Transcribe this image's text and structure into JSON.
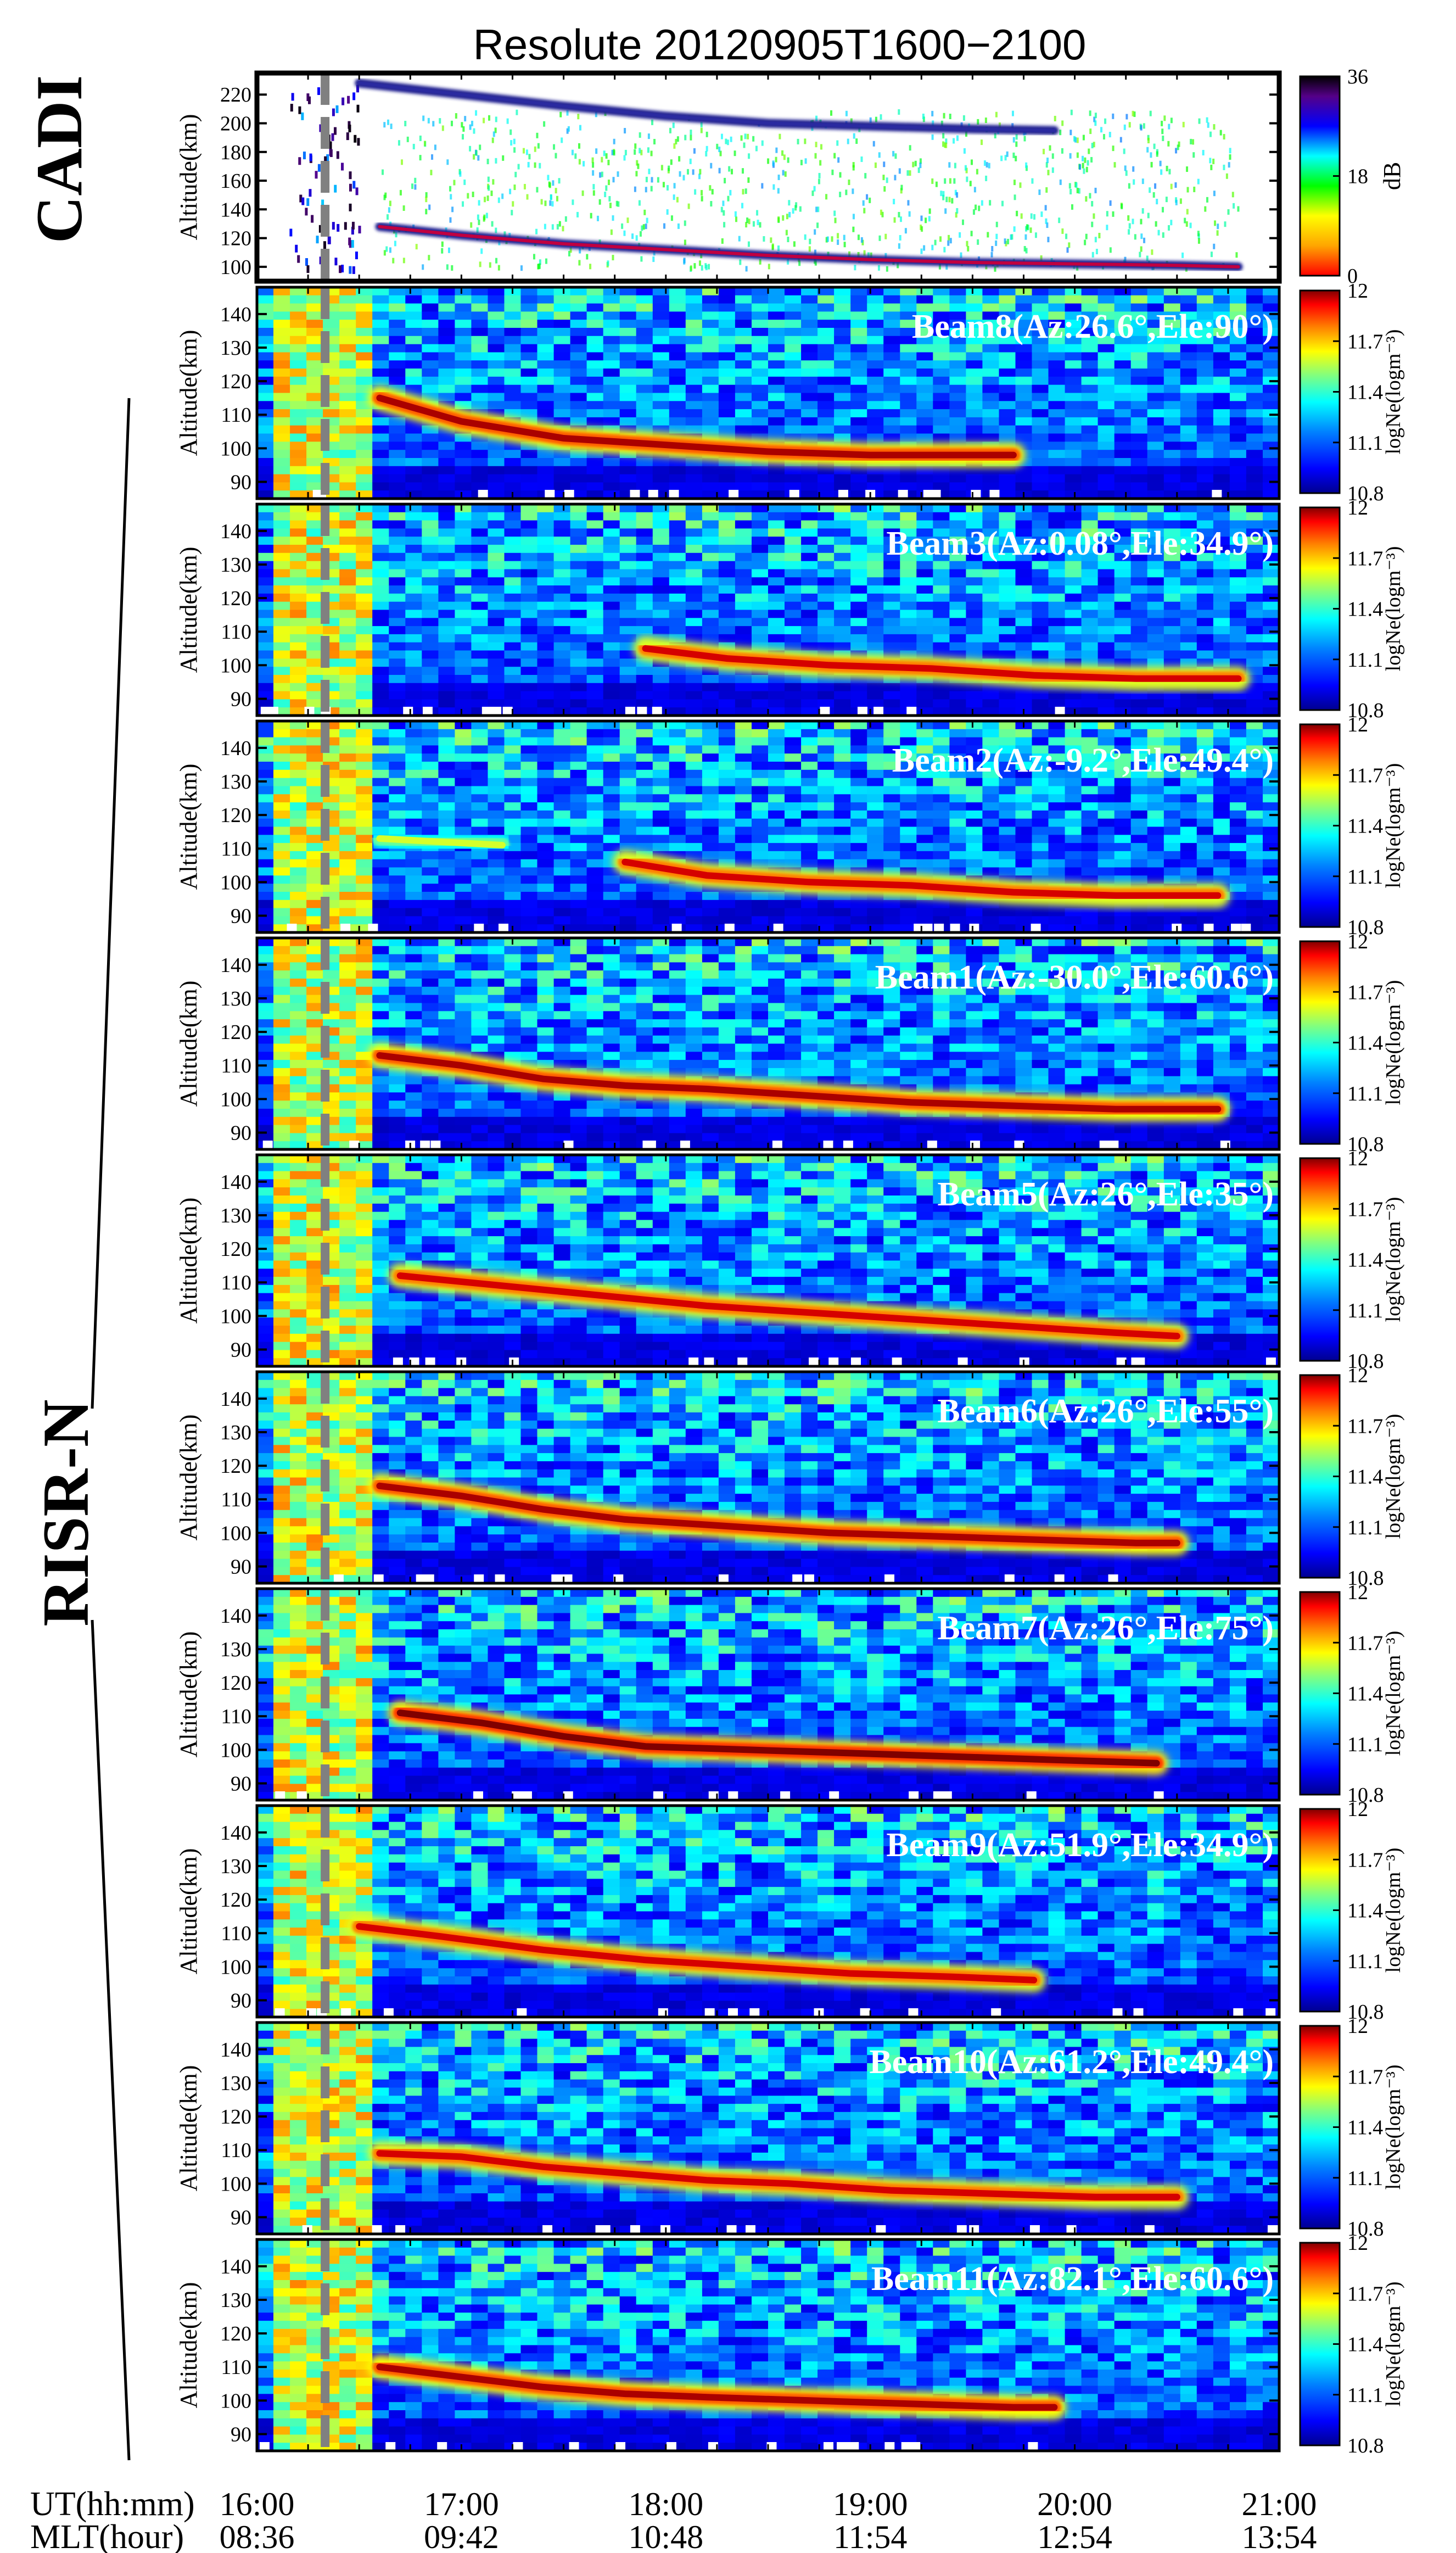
{
  "title": "Resolute  20120905T1600−2100",
  "left_labels": {
    "cadi": "CADI",
    "risr": "RISR-N"
  },
  "xaxis": {
    "ut_label": "UT(hh:mm)",
    "mlt_label": "MLT(hour)",
    "ticks_ut": [
      "16:00",
      "17:00",
      "18:00",
      "19:00",
      "20:00",
      "21:00"
    ],
    "ticks_mlt": [
      "08:36",
      "09:42",
      "10:48",
      "11:54",
      "12:54",
      "13:54"
    ],
    "range_hours": [
      16,
      21
    ]
  },
  "event_marker": {
    "time_ut": "16:20",
    "color": "#808080",
    "style": "dashed"
  },
  "colors": {
    "cadi_scale": [
      "#ff0000",
      "#ffa500",
      "#ffff00",
      "#00ff00",
      "#00ffff",
      "#0000ff",
      "#550088",
      "#000000"
    ],
    "risr_scale": [
      "#00008f",
      "#0000ff",
      "#0080ff",
      "#00ffff",
      "#80ff80",
      "#ffff00",
      "#ff8000",
      "#ff0000",
      "#800000"
    ]
  },
  "chart_data": [
    {
      "type": "heatmap",
      "name": "CADI",
      "ylabel": "Altitude(km)",
      "yticks": [
        "220",
        "200",
        "180",
        "160",
        "140",
        "120",
        "100"
      ],
      "ylim": [
        90,
        235
      ],
      "colorbar": {
        "label": "dB",
        "ticks": [
          "36",
          "18",
          "0"
        ],
        "range": [
          0,
          36
        ]
      },
      "traces": [
        {
          "desc": "lower echo trace",
          "points": [
            [
              16.6,
              128
            ],
            [
              17.0,
              122
            ],
            [
              17.5,
              116
            ],
            [
              18.0,
              112
            ],
            [
              18.5,
              108
            ],
            [
              19.0,
              105
            ],
            [
              19.5,
              103
            ],
            [
              20.0,
              102
            ],
            [
              20.5,
              101
            ],
            [
              20.8,
              100
            ]
          ]
        },
        {
          "desc": "upper echo trace",
          "points": [
            [
              16.5,
              228
            ],
            [
              17.0,
              220
            ],
            [
              17.5,
              212
            ],
            [
              18.0,
              205
            ],
            [
              18.5,
              200
            ],
            [
              19.0,
              198
            ],
            [
              19.5,
              196
            ],
            [
              19.9,
              195
            ]
          ]
        }
      ]
    },
    {
      "type": "heatmap",
      "name": "Beam8",
      "label": "Beam8(Az:26.6°,Ele:90°)",
      "ylabel": "Altitude(km)",
      "yticks": [
        "140",
        "130",
        "120",
        "110",
        "100",
        "90"
      ],
      "ylim": [
        85,
        148
      ],
      "colorbar": {
        "label": "logNe(logm⁻³)",
        "ticks": [
          "12",
          "11.7",
          "11.4",
          "11.1",
          "10.8"
        ],
        "range": [
          10.8,
          12
        ]
      },
      "layer": {
        "points": [
          [
            16.6,
            115
          ],
          [
            17.0,
            108
          ],
          [
            17.5,
            103
          ],
          [
            18.0,
            101
          ],
          [
            18.5,
            99
          ],
          [
            19.0,
            98
          ],
          [
            19.5,
            98
          ],
          [
            19.7,
            98
          ]
        ],
        "peak_logNe": 11.95
      }
    },
    {
      "type": "heatmap",
      "name": "Beam3",
      "label": "Beam3(Az:0.08°,Ele:34.9°)",
      "ylabel": "Altitude(km)",
      "yticks": [
        "140",
        "130",
        "120",
        "110",
        "100",
        "90"
      ],
      "ylim": [
        85,
        148
      ],
      "colorbar": {
        "label": "logNe(logm⁻³)",
        "ticks": [
          "12",
          "11.7",
          "11.4",
          "11.1",
          "10.8"
        ],
        "range": [
          10.8,
          12
        ]
      },
      "layer": {
        "points": [
          [
            17.9,
            105
          ],
          [
            18.3,
            102
          ],
          [
            18.8,
            100
          ],
          [
            19.3,
            99
          ],
          [
            19.8,
            97
          ],
          [
            20.3,
            96
          ],
          [
            20.8,
            96
          ]
        ],
        "peak_logNe": 11.9
      }
    },
    {
      "type": "heatmap",
      "name": "Beam2",
      "label": "Beam2(Az:-9.2°,Ele:49.4°)",
      "ylabel": "Altitude(km)",
      "yticks": [
        "140",
        "130",
        "120",
        "110",
        "100",
        "90"
      ],
      "ylim": [
        85,
        148
      ],
      "colorbar": {
        "label": "logNe(logm⁻³)",
        "ticks": [
          "12",
          "11.7",
          "11.4",
          "11.1",
          "10.8"
        ],
        "range": [
          10.8,
          12
        ]
      },
      "layer": {
        "points": [
          [
            17.8,
            106
          ],
          [
            18.2,
            102
          ],
          [
            18.7,
            100
          ],
          [
            19.2,
            99
          ],
          [
            19.7,
            97
          ],
          [
            20.2,
            96
          ],
          [
            20.7,
            96
          ]
        ],
        "peak_logNe": 11.9
      },
      "secondary_layer": {
        "points": [
          [
            16.6,
            113
          ],
          [
            16.9,
            112
          ],
          [
            17.2,
            111
          ]
        ],
        "peak_logNe": 11.5
      }
    },
    {
      "type": "heatmap",
      "name": "Beam1",
      "label": "Beam1(Az:-30.0°,Ele:60.6°)",
      "ylabel": "Altitude(km)",
      "yticks": [
        "140",
        "130",
        "120",
        "110",
        "100",
        "90"
      ],
      "ylim": [
        85,
        148
      ],
      "colorbar": {
        "label": "logNe(logm⁻³)",
        "ticks": [
          "12",
          "11.7",
          "11.4",
          "11.1",
          "10.8"
        ],
        "range": [
          10.8,
          12
        ]
      },
      "layer": {
        "points": [
          [
            16.6,
            113
          ],
          [
            17.0,
            110
          ],
          [
            17.4,
            106
          ],
          [
            17.8,
            104
          ],
          [
            18.2,
            103
          ],
          [
            18.7,
            101
          ],
          [
            19.2,
            99
          ],
          [
            19.7,
            98
          ],
          [
            20.2,
            97
          ],
          [
            20.7,
            97
          ]
        ],
        "peak_logNe": 11.95
      }
    },
    {
      "type": "heatmap",
      "name": "Beam5",
      "label": "Beam5(Az:26°,Ele:35°)",
      "ylabel": "Altitude(km)",
      "yticks": [
        "140",
        "130",
        "120",
        "110",
        "100",
        "90"
      ],
      "ylim": [
        85,
        148
      ],
      "colorbar": {
        "label": "logNe(logm⁻³)",
        "ticks": [
          "12",
          "11.7",
          "11.4",
          "11.1",
          "10.8"
        ],
        "range": [
          10.8,
          12
        ]
      },
      "layer": {
        "points": [
          [
            16.7,
            112
          ],
          [
            17.2,
            109
          ],
          [
            17.7,
            106
          ],
          [
            18.2,
            103
          ],
          [
            18.7,
            101
          ],
          [
            19.2,
            99
          ],
          [
            19.7,
            97
          ],
          [
            20.2,
            95
          ],
          [
            20.5,
            94
          ]
        ],
        "peak_logNe": 11.9
      }
    },
    {
      "type": "heatmap",
      "name": "Beam6",
      "label": "Beam6(Az:26°,Ele:55°)",
      "ylabel": "Altitude(km)",
      "yticks": [
        "140",
        "130",
        "120",
        "110",
        "100",
        "90"
      ],
      "ylim": [
        85,
        148
      ],
      "colorbar": {
        "label": "logNe(logm⁻³)",
        "ticks": [
          "12",
          "11.7",
          "11.4",
          "11.1",
          "10.8"
        ],
        "range": [
          10.8,
          12
        ]
      },
      "layer": {
        "points": [
          [
            16.6,
            114
          ],
          [
            17.0,
            111
          ],
          [
            17.4,
            107
          ],
          [
            17.8,
            104
          ],
          [
            18.3,
            102
          ],
          [
            18.8,
            100
          ],
          [
            19.3,
            99
          ],
          [
            19.8,
            98
          ],
          [
            20.3,
            97
          ],
          [
            20.5,
            97
          ]
        ],
        "peak_logNe": 11.95
      }
    },
    {
      "type": "heatmap",
      "name": "Beam7",
      "label": "Beam7(Az:26°,Ele:75°)",
      "ylabel": "Altitude(km)",
      "yticks": [
        "140",
        "130",
        "120",
        "110",
        "100",
        "90"
      ],
      "ylim": [
        85,
        148
      ],
      "colorbar": {
        "label": "logNe(logm⁻³)",
        "ticks": [
          "12",
          "11.7",
          "11.4",
          "11.1",
          "10.8"
        ],
        "range": [
          10.8,
          12
        ]
      },
      "layer": {
        "points": [
          [
            16.7,
            111
          ],
          [
            17.1,
            108
          ],
          [
            17.5,
            104
          ],
          [
            17.9,
            101
          ],
          [
            18.4,
            100
          ],
          [
            18.9,
            99
          ],
          [
            19.4,
            98
          ],
          [
            19.9,
            97
          ],
          [
            20.4,
            96
          ]
        ],
        "peak_logNe": 12.0
      }
    },
    {
      "type": "heatmap",
      "name": "Beam9",
      "label": "Beam9(Az:51.9°,Ele:34.9°)",
      "ylabel": "Altitude(km)",
      "yticks": [
        "140",
        "130",
        "120",
        "110",
        "100",
        "90"
      ],
      "ylim": [
        85,
        148
      ],
      "colorbar": {
        "label": "logNe(logm⁻³)",
        "ticks": [
          "12",
          "11.7",
          "11.4",
          "11.1",
          "10.8"
        ],
        "range": [
          10.8,
          12
        ]
      },
      "layer": {
        "points": [
          [
            16.5,
            112
          ],
          [
            16.9,
            109
          ],
          [
            17.4,
            105
          ],
          [
            17.9,
            102
          ],
          [
            18.4,
            100
          ],
          [
            18.9,
            98
          ],
          [
            19.4,
            97
          ],
          [
            19.8,
            96
          ]
        ],
        "peak_logNe": 11.9
      }
    },
    {
      "type": "heatmap",
      "name": "Beam10",
      "label": "Beam10(Az:61.2°,Ele:49.4°)",
      "ylabel": "Altitude(km)",
      "yticks": [
        "140",
        "130",
        "120",
        "110",
        "100",
        "90"
      ],
      "ylim": [
        85,
        148
      ],
      "colorbar": {
        "label": "logNe(logm⁻³)",
        "ticks": [
          "12",
          "11.7",
          "11.4",
          "11.1",
          "10.8"
        ],
        "range": [
          10.8,
          12
        ]
      },
      "layer": {
        "points": [
          [
            16.6,
            109
          ],
          [
            17.0,
            108
          ],
          [
            17.4,
            105
          ],
          [
            17.8,
            103
          ],
          [
            18.2,
            101
          ],
          [
            18.6,
            100
          ],
          [
            19.1,
            98
          ],
          [
            19.6,
            97
          ],
          [
            20.1,
            96
          ],
          [
            20.5,
            96
          ]
        ],
        "peak_logNe": 11.9
      }
    },
    {
      "type": "heatmap",
      "name": "Beam11",
      "label": "Beam11(Az:82.1°,Ele:60.6°)",
      "ylabel": "Altitude(km)",
      "yticks": [
        "140",
        "130",
        "120",
        "110",
        "100",
        "90"
      ],
      "ylim": [
        85,
        148
      ],
      "colorbar": {
        "label": "logNe(logm⁻³)",
        "ticks": [
          "12",
          "11.7",
          "11.4",
          "11.1",
          "10.8"
        ],
        "range": [
          10.8,
          12
        ]
      },
      "layer": {
        "points": [
          [
            16.6,
            110
          ],
          [
            17.0,
            107
          ],
          [
            17.4,
            104
          ],
          [
            17.8,
            102
          ],
          [
            18.2,
            101
          ],
          [
            18.7,
            100
          ],
          [
            19.2,
            99
          ],
          [
            19.7,
            98
          ],
          [
            19.9,
            98
          ]
        ],
        "peak_logNe": 11.95
      }
    }
  ]
}
